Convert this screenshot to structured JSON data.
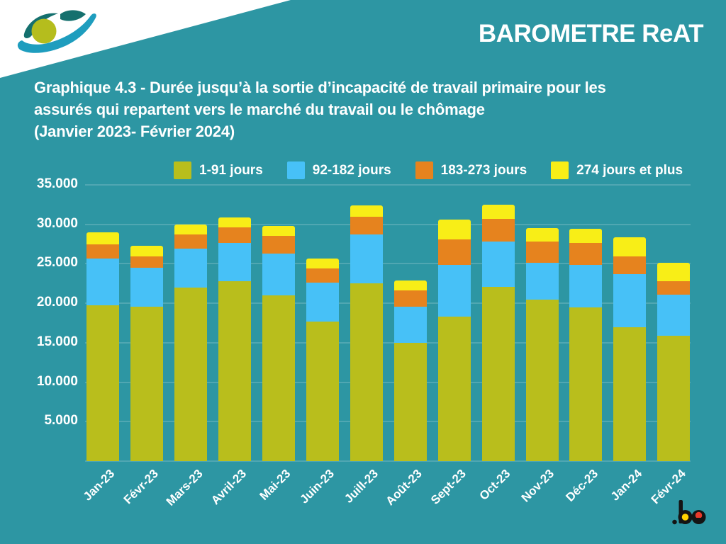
{
  "header": {
    "brand": "BAROMETRE ReAT"
  },
  "title": {
    "line1": "Graphique 4.3 - Durée jusqu’à la sortie d’incapacité de travail primaire pour les",
    "line2": "assurés qui repartent vers le marché du travail ou le chômage",
    "line3": "(Janvier 2023- Février 2024)"
  },
  "footer": {
    "logo_text": ".be"
  },
  "colors": {
    "background": "#2D96A3",
    "series_1_91": "#B9BE1C",
    "series_92_182": "#47C1F7",
    "series_183_273": "#E6831E",
    "series_274_plus": "#F8EE17",
    "text": "#FFFFFF",
    "be_black": "#141414",
    "be_yellow": "#FFD200",
    "be_red": "#E8392B",
    "logo_swoosh": "#1E9DBE",
    "logo_dark": "#15706E",
    "logo_iris": "#B5BD1D"
  },
  "chart_data": {
    "type": "bar",
    "subtype": "stacked",
    "title": "Graphique 4.3 - Durée jusqu’à la sortie d’incapacité de travail primaire pour les assurés qui repartent vers le marché du travail ou le chômage (Janvier 2023- Février 2024)",
    "categories": [
      "Jan-23",
      "Févr-23",
      "Mars-23",
      "Avril-23",
      "Mai-23",
      "Juin-23",
      "Juill-23",
      "Août-23",
      "Sept-23",
      "Oct-23",
      "Nov-23",
      "Déc-23",
      "Jan-24",
      "Févr-24"
    ],
    "series": [
      {
        "name": "1-91 jours",
        "color": "#B9BE1C",
        "values": [
          19700,
          19600,
          22000,
          22800,
          21000,
          17700,
          22500,
          15000,
          18300,
          22100,
          20500,
          19500,
          17000,
          15900
        ]
      },
      {
        "name": "92-182 jours",
        "color": "#47C1F7",
        "values": [
          6000,
          4900,
          4900,
          4800,
          5300,
          4900,
          6200,
          4600,
          6600,
          5700,
          4600,
          5400,
          6700,
          5200
        ]
      },
      {
        "name": "183-273 jours",
        "color": "#E6831E",
        "values": [
          1800,
          1400,
          1800,
          2000,
          2200,
          1800,
          2300,
          2000,
          3200,
          2900,
          2700,
          2700,
          2200,
          1700
        ]
      },
      {
        "name": "274 jours et plus",
        "color": "#F8EE17",
        "values": [
          1500,
          1400,
          1300,
          1300,
          1300,
          1300,
          1400,
          1300,
          2500,
          1800,
          1700,
          1800,
          2500,
          2300
        ]
      }
    ],
    "totals": [
      29000,
      27300,
      30000,
      30900,
      29800,
      25700,
      32400,
      22900,
      30600,
      32500,
      29500,
      29400,
      28400,
      25100
    ],
    "ylim": [
      0,
      35000
    ],
    "yticks": [
      {
        "value": 35000,
        "label": "35.000"
      },
      {
        "value": 30000,
        "label": "30.000"
      },
      {
        "value": 25000,
        "label": "25.000"
      },
      {
        "value": 20000,
        "label": "20.000"
      },
      {
        "value": 15000,
        "label": "15.000"
      },
      {
        "value": 10000,
        "label": "10.000"
      },
      {
        "value": 5000,
        "label": "5.000"
      }
    ],
    "grid": true,
    "legend_position": "top",
    "xlabel_rotation_deg": -45
  }
}
